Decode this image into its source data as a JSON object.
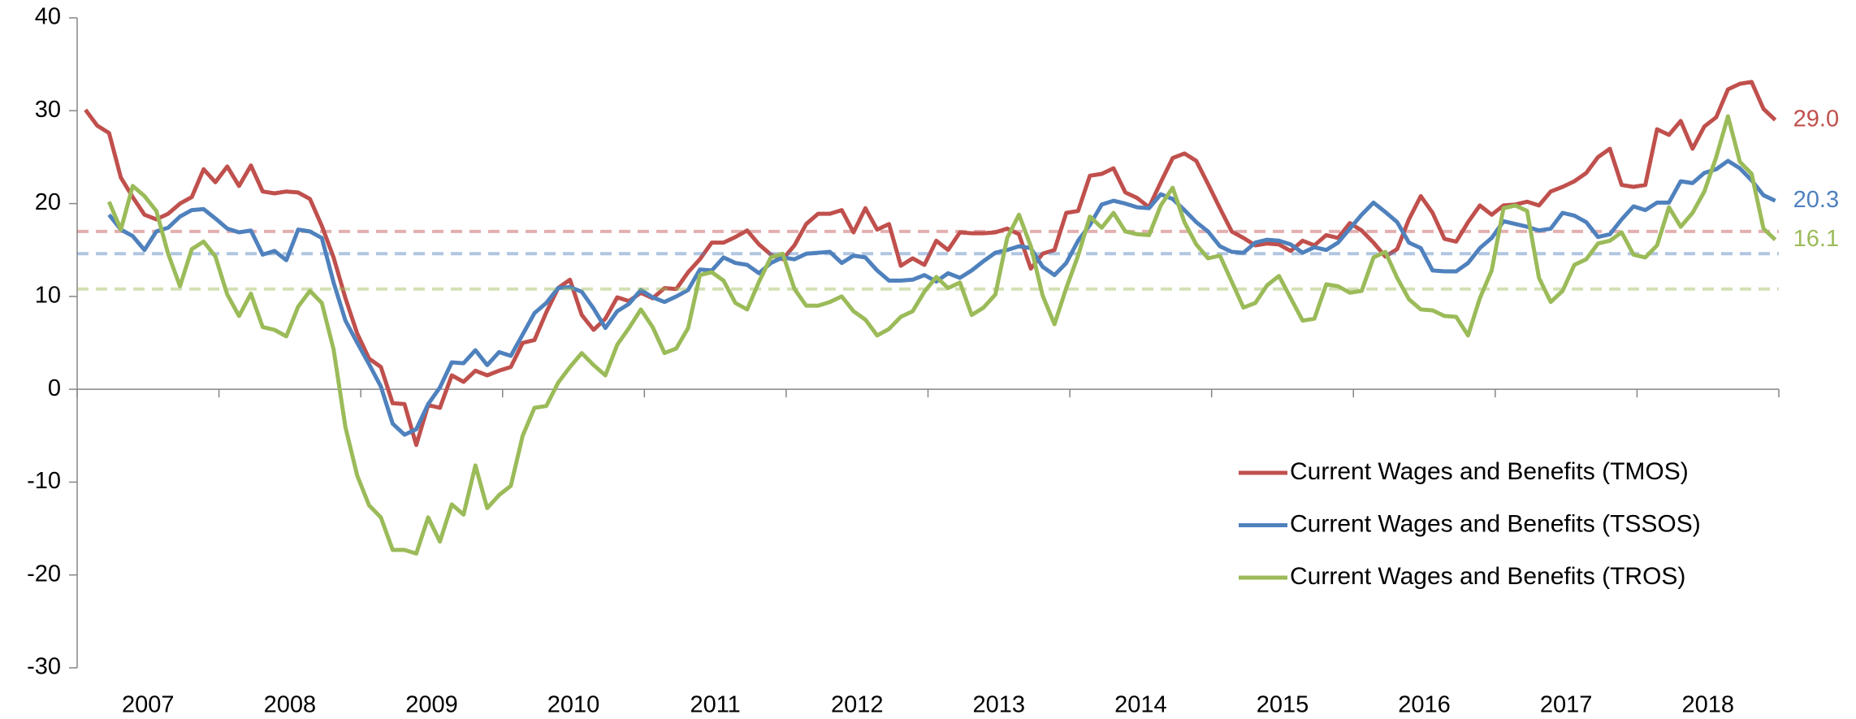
{
  "chart_data": {
    "type": "line",
    "categories": [
      null,
      null,
      null,
      null,
      null,
      "2007",
      null,
      null,
      null,
      null,
      null,
      null,
      null,
      null,
      null,
      null,
      null,
      "2008",
      null,
      null,
      null,
      null,
      null,
      null,
      null,
      null,
      null,
      null,
      null,
      "2009",
      null,
      null,
      null,
      null,
      null,
      null,
      null,
      null,
      null,
      null,
      null,
      "2010",
      null,
      null,
      null,
      null,
      null,
      null,
      null,
      null,
      null,
      null,
      null,
      "2011",
      null,
      null,
      null,
      null,
      null,
      null,
      null,
      null,
      null,
      null,
      null,
      "2012",
      null,
      null,
      null,
      null,
      null,
      null,
      null,
      null,
      null,
      null,
      null,
      "2013",
      null,
      null,
      null,
      null,
      null,
      null,
      null,
      null,
      null,
      null,
      null,
      "2014",
      null,
      null,
      null,
      null,
      null,
      null,
      null,
      null,
      null,
      null,
      null,
      "2015",
      null,
      null,
      null,
      null,
      null,
      null,
      null,
      null,
      null,
      null,
      null,
      "2016",
      null,
      null,
      null,
      null,
      null,
      null,
      null,
      null,
      null,
      null,
      null,
      "2017",
      null,
      null,
      null,
      null,
      null,
      null,
      null,
      null,
      null,
      null,
      null,
      "2018",
      null,
      null,
      null,
      null,
      null,
      null
    ],
    "ylim": [
      -30,
      40
    ],
    "yticks": [
      -30,
      -20,
      -10,
      0,
      10,
      20,
      30,
      40
    ],
    "legend": "lower-right",
    "series": [
      {
        "name": "Current Wages and Benefits (TMOS)",
        "color": "#c0504d",
        "average": 17.0,
        "end_label": "29.0",
        "values": [
          30.1,
          28.4,
          27.6,
          22.8,
          20.7,
          18.8,
          18.3,
          18.9,
          20.0,
          20.7,
          23.7,
          22.3,
          24.0,
          21.9,
          24.1,
          21.3,
          21.1,
          21.3,
          21.2,
          20.5,
          17.6,
          14.2,
          9.8,
          6.0,
          3.3,
          2.4,
          -1.5,
          -1.6,
          -6.0,
          -1.7,
          -2.0,
          1.5,
          0.8,
          2.0,
          1.5,
          2.0,
          2.4,
          5.0,
          5.3,
          8.3,
          10.9,
          11.8,
          8.0,
          6.4,
          7.6,
          9.9,
          9.5,
          10.4,
          9.8,
          10.9,
          10.8,
          12.6,
          14.0,
          15.8,
          15.8,
          16.4,
          17.1,
          15.6,
          14.5,
          14.0,
          15.5,
          17.8,
          18.9,
          18.9,
          19.3,
          16.9,
          19.5,
          17.2,
          17.8,
          13.3,
          14.1,
          13.4,
          16.0,
          15.0,
          16.9,
          16.8,
          16.8,
          16.9,
          17.3,
          16.7,
          13.0,
          14.6,
          15.0,
          19.0,
          19.2,
          23.0,
          23.2,
          23.8,
          21.2,
          20.6,
          19.6,
          22.3,
          24.9,
          25.4,
          24.6,
          22.1,
          19.5,
          17.0,
          16.3,
          15.5,
          15.7,
          15.6,
          14.9,
          16.0,
          15.5,
          16.6,
          16.3,
          17.9,
          17.1,
          15.8,
          14.3,
          15.1,
          18.3,
          20.8,
          19.0,
          16.2,
          15.9,
          18.0,
          19.8,
          18.8,
          19.8,
          19.9,
          20.2,
          19.8,
          21.3,
          21.8,
          22.4,
          23.3,
          25.0,
          25.9,
          22.0,
          21.8,
          22.0,
          28.0,
          27.4,
          28.9,
          25.9,
          28.3,
          29.3,
          32.3,
          32.9,
          33.1,
          30.2,
          29.0
        ]
      },
      {
        "name": "Current Wages and Benefits (TSSOS)",
        "color": "#4f81bd",
        "average": 14.6,
        "end_label": "20.3",
        "values": [
          null,
          null,
          18.8,
          17.2,
          16.5,
          15.0,
          17.0,
          17.4,
          18.6,
          19.3,
          19.4,
          18.4,
          17.3,
          16.9,
          17.1,
          14.5,
          14.9,
          13.9,
          17.2,
          17.0,
          16.3,
          11.5,
          7.4,
          5.0,
          2.7,
          0.3,
          -3.7,
          -4.9,
          -4.3,
          -1.6,
          0.2,
          2.9,
          2.8,
          4.2,
          2.6,
          4.0,
          3.6,
          5.9,
          8.2,
          9.3,
          10.9,
          11.0,
          10.5,
          8.7,
          6.6,
          8.4,
          9.2,
          10.7,
          9.9,
          9.4,
          10.0,
          10.7,
          12.9,
          12.8,
          14.2,
          13.6,
          13.4,
          12.5,
          13.6,
          14.2,
          14.0,
          14.6,
          14.7,
          14.8,
          13.6,
          14.4,
          14.2,
          12.8,
          11.7,
          11.7,
          11.8,
          12.3,
          11.6,
          12.5,
          12.0,
          12.8,
          13.8,
          14.7,
          15.0,
          15.4,
          15.2,
          13.2,
          12.3,
          13.6,
          16.0,
          17.7,
          19.9,
          20.3,
          20.0,
          19.6,
          19.5,
          21.0,
          20.5,
          19.3,
          18.0,
          17.0,
          15.4,
          14.8,
          14.7,
          15.8,
          16.1,
          16.0,
          15.6,
          14.7,
          15.3,
          15.0,
          15.8,
          17.3,
          18.8,
          20.1,
          19.1,
          18.0,
          15.8,
          15.2,
          12.8,
          12.7,
          12.7,
          13.6,
          15.2,
          16.3,
          18.1,
          17.8,
          17.5,
          17.1,
          17.3,
          19.0,
          18.7,
          18.0,
          16.4,
          16.7,
          18.3,
          19.7,
          19.3,
          20.1,
          20.1,
          22.4,
          22.2,
          23.3,
          23.7,
          24.6,
          23.8,
          22.5,
          20.9,
          20.3
        ]
      },
      {
        "name": "Current Wages and Benefits (TROS)",
        "color": "#9bbb59",
        "average": 10.8,
        "end_label": "16.1",
        "values": [
          null,
          null,
          20.2,
          17.2,
          21.9,
          20.8,
          19.2,
          14.6,
          11.1,
          15.1,
          15.9,
          14.3,
          10.2,
          7.9,
          10.3,
          6.7,
          6.4,
          5.7,
          8.9,
          10.6,
          9.3,
          4.3,
          -4.1,
          -9.3,
          -12.5,
          -13.8,
          -17.3,
          -17.3,
          -17.7,
          -13.8,
          -16.4,
          -12.4,
          -13.5,
          -8.2,
          -12.8,
          -11.4,
          -10.4,
          -5.0,
          -2.0,
          -1.8,
          0.7,
          2.4,
          3.9,
          2.6,
          1.5,
          4.8,
          6.6,
          8.6,
          6.7,
          3.9,
          4.4,
          6.6,
          12.3,
          12.6,
          11.7,
          9.3,
          8.6,
          11.6,
          14.2,
          14.6,
          10.8,
          9.0,
          9.0,
          9.4,
          10.0,
          8.4,
          7.5,
          5.8,
          6.5,
          7.8,
          8.4,
          10.5,
          12.1,
          10.9,
          11.5,
          8.0,
          8.8,
          10.2,
          16.3,
          18.8,
          15.4,
          10.1,
          7.0,
          10.9,
          14.4,
          18.6,
          17.4,
          19.0,
          17.0,
          16.7,
          16.6,
          19.8,
          21.7,
          18.0,
          15.6,
          14.1,
          14.4,
          11.6,
          8.8,
          9.3,
          11.2,
          12.2,
          9.8,
          7.4,
          7.6,
          11.3,
          11.1,
          10.4,
          10.6,
          14.2,
          14.8,
          12.0,
          9.7,
          8.6,
          8.5,
          7.9,
          7.8,
          5.8,
          9.8,
          12.8,
          19.5,
          19.8,
          19.2,
          12.0,
          9.4,
          10.6,
          13.4,
          14.0,
          15.7,
          16.0,
          16.9,
          14.5,
          14.2,
          15.5,
          19.6,
          17.5,
          19.0,
          21.3,
          25.0,
          29.4,
          24.5,
          23.2,
          17.3,
          16.1
        ]
      }
    ]
  }
}
